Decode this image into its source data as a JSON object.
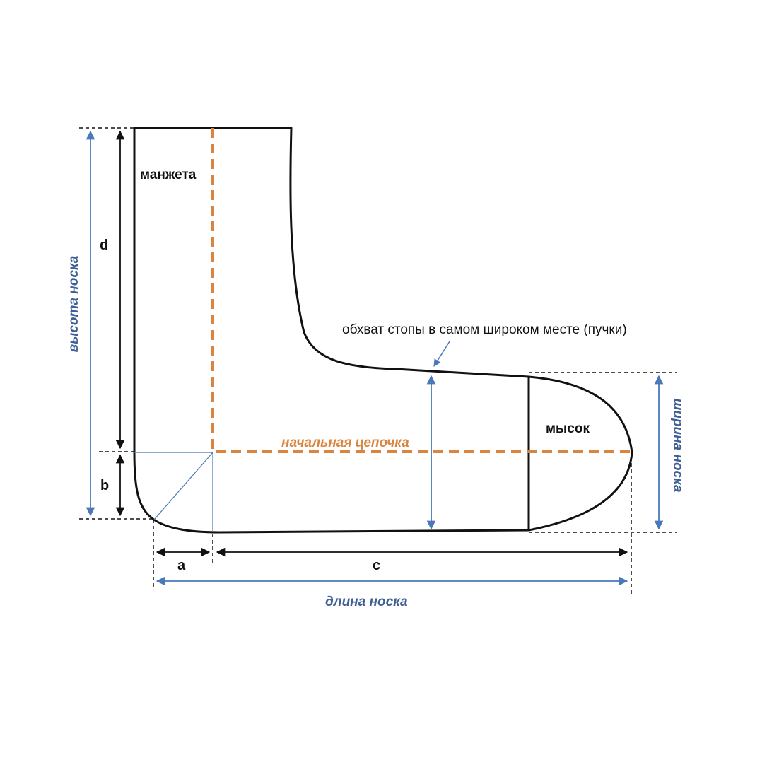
{
  "colors": {
    "outline": "#111111",
    "dimension_blue": "#4a78b8",
    "label_blue": "#3f5f96",
    "chain_orange": "#d9853f"
  },
  "labels": {
    "cuff": "манжета",
    "toe": "мысок",
    "starting_chain": "начальная цепочка",
    "foot_circumference": "обхват стопы в самом широком месте (пучки)",
    "sock_height": "высота носка",
    "sock_width": "ширина носка",
    "sock_length": "длина носка",
    "dim_a": "a",
    "dim_b": "b",
    "dim_c": "c",
    "dim_d": "d"
  }
}
